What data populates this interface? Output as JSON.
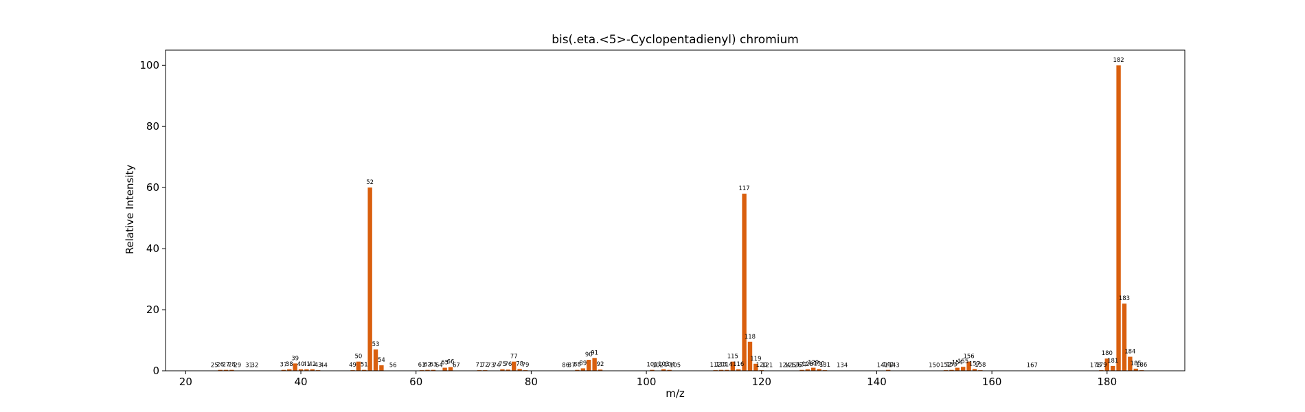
{
  "colors": {
    "bar": "#d95f0e",
    "axis": "#000000",
    "background": "#ffffff"
  },
  "chart_data": {
    "type": "bar",
    "title": "bis(.eta.<5>-Cyclopentadienyl) chromium",
    "xlabel": "m/z",
    "ylabel": "Relative Intensity",
    "xlim": [
      16.5,
      193.5
    ],
    "ylim": [
      0,
      105
    ],
    "xticks": [
      20,
      40,
      60,
      80,
      100,
      120,
      140,
      160,
      180
    ],
    "yticks": [
      0,
      20,
      40,
      60,
      80,
      100
    ],
    "grid": false,
    "peaks": [
      {
        "mz": 25,
        "intensity": 0.1,
        "label": "25"
      },
      {
        "mz": 26,
        "intensity": 0.3,
        "label": "26"
      },
      {
        "mz": 27,
        "intensity": 0.3,
        "label": "27"
      },
      {
        "mz": 28,
        "intensity": 0.3,
        "label": "28"
      },
      {
        "mz": 29,
        "intensity": 0.1,
        "label": "29"
      },
      {
        "mz": 31,
        "intensity": 0.1,
        "label": "31"
      },
      {
        "mz": 32,
        "intensity": 0.1,
        "label": "32"
      },
      {
        "mz": 37,
        "intensity": 0.3,
        "label": "37"
      },
      {
        "mz": 38,
        "intensity": 0.5,
        "label": "38"
      },
      {
        "mz": 39,
        "intensity": 2.4,
        "label": "39"
      },
      {
        "mz": 40,
        "intensity": 0.5,
        "label": "40"
      },
      {
        "mz": 41,
        "intensity": 0.5,
        "label": "41"
      },
      {
        "mz": 42,
        "intensity": 0.5,
        "label": "42"
      },
      {
        "mz": 43,
        "intensity": 0.2,
        "label": "43"
      },
      {
        "mz": 44,
        "intensity": 0.1,
        "label": "44"
      },
      {
        "mz": 49,
        "intensity": 0.2,
        "label": "49"
      },
      {
        "mz": 50,
        "intensity": 3.0,
        "label": "50"
      },
      {
        "mz": 51,
        "intensity": 0.3,
        "label": "51"
      },
      {
        "mz": 52,
        "intensity": 60.0,
        "label": "52"
      },
      {
        "mz": 53,
        "intensity": 7.0,
        "label": "53"
      },
      {
        "mz": 54,
        "intensity": 1.8,
        "label": "54"
      },
      {
        "mz": 56,
        "intensity": 0.1,
        "label": "56"
      },
      {
        "mz": 61,
        "intensity": 0.2,
        "label": "61"
      },
      {
        "mz": 62,
        "intensity": 0.3,
        "label": "62"
      },
      {
        "mz": 63,
        "intensity": 0.3,
        "label": "63"
      },
      {
        "mz": 64,
        "intensity": 0.1,
        "label": "64"
      },
      {
        "mz": 65,
        "intensity": 1.0,
        "label": "65"
      },
      {
        "mz": 66,
        "intensity": 1.2,
        "label": "66"
      },
      {
        "mz": 67,
        "intensity": 0.1,
        "label": "67"
      },
      {
        "mz": 71,
        "intensity": 0.2,
        "label": "71"
      },
      {
        "mz": 72,
        "intensity": 0.2,
        "label": "72"
      },
      {
        "mz": 73,
        "intensity": 0.1,
        "label": "73"
      },
      {
        "mz": 74,
        "intensity": 0.1,
        "label": "74"
      },
      {
        "mz": 75,
        "intensity": 0.5,
        "label": "75"
      },
      {
        "mz": 76,
        "intensity": 0.4,
        "label": "76"
      },
      {
        "mz": 77,
        "intensity": 3.0,
        "label": "77"
      },
      {
        "mz": 78,
        "intensity": 0.6,
        "label": "78"
      },
      {
        "mz": 79,
        "intensity": 0.2,
        "label": "79"
      },
      {
        "mz": 86,
        "intensity": 0.1,
        "label": "86"
      },
      {
        "mz": 87,
        "intensity": 0.1,
        "label": "87"
      },
      {
        "mz": 88,
        "intensity": 0.3,
        "label": "88"
      },
      {
        "mz": 89,
        "intensity": 0.8,
        "label": "89"
      },
      {
        "mz": 90,
        "intensity": 3.6,
        "label": "90"
      },
      {
        "mz": 91,
        "intensity": 4.2,
        "label": "91"
      },
      {
        "mz": 92,
        "intensity": 0.4,
        "label": "92"
      },
      {
        "mz": 101,
        "intensity": 0.3,
        "label": "101"
      },
      {
        "mz": 102,
        "intensity": 0.1,
        "label": "102"
      },
      {
        "mz": 103,
        "intensity": 0.5,
        "label": "103"
      },
      {
        "mz": 104,
        "intensity": 0.3,
        "label": "104"
      },
      {
        "mz": 105,
        "intensity": 0.1,
        "label": "105"
      },
      {
        "mz": 112,
        "intensity": 0.2,
        "label": "112"
      },
      {
        "mz": 113,
        "intensity": 0.3,
        "label": "113"
      },
      {
        "mz": 114,
        "intensity": 0.3,
        "label": "114"
      },
      {
        "mz": 115,
        "intensity": 3.0,
        "label": "115"
      },
      {
        "mz": 116,
        "intensity": 0.5,
        "label": "116"
      },
      {
        "mz": 117,
        "intensity": 58.0,
        "label": "117"
      },
      {
        "mz": 118,
        "intensity": 9.5,
        "label": "118"
      },
      {
        "mz": 119,
        "intensity": 2.3,
        "label": "119"
      },
      {
        "mz": 120,
        "intensity": 0.2,
        "label": "120"
      },
      {
        "mz": 121,
        "intensity": 0.1,
        "label": "121"
      },
      {
        "mz": 124,
        "intensity": 0.1,
        "label": "124"
      },
      {
        "mz": 125,
        "intensity": 0.1,
        "label": "125"
      },
      {
        "mz": 126,
        "intensity": 0.1,
        "label": "126"
      },
      {
        "mz": 127,
        "intensity": 0.3,
        "label": "127"
      },
      {
        "mz": 128,
        "intensity": 0.5,
        "label": "128"
      },
      {
        "mz": 129,
        "intensity": 1.0,
        "label": "129"
      },
      {
        "mz": 130,
        "intensity": 0.6,
        "label": "130"
      },
      {
        "mz": 131,
        "intensity": 0.2,
        "label": "131"
      },
      {
        "mz": 134,
        "intensity": 0.1,
        "label": "134"
      },
      {
        "mz": 141,
        "intensity": 0.1,
        "label": "141"
      },
      {
        "mz": 142,
        "intensity": 0.3,
        "label": "142"
      },
      {
        "mz": 143,
        "intensity": 0.1,
        "label": "143"
      },
      {
        "mz": 150,
        "intensity": 0.1,
        "label": "150"
      },
      {
        "mz": 152,
        "intensity": 0.2,
        "label": "152"
      },
      {
        "mz": 153,
        "intensity": 0.3,
        "label": "153"
      },
      {
        "mz": 154,
        "intensity": 1.0,
        "label": "154"
      },
      {
        "mz": 155,
        "intensity": 1.3,
        "label": "155"
      },
      {
        "mz": 156,
        "intensity": 3.0,
        "label": "156"
      },
      {
        "mz": 157,
        "intensity": 0.6,
        "label": "157"
      },
      {
        "mz": 158,
        "intensity": 0.2,
        "label": "158"
      },
      {
        "mz": 167,
        "intensity": 0.1,
        "label": "167"
      },
      {
        "mz": 178,
        "intensity": 0.1,
        "label": "178"
      },
      {
        "mz": 179,
        "intensity": 0.2,
        "label": "179"
      },
      {
        "mz": 180,
        "intensity": 4.0,
        "label": "180"
      },
      {
        "mz": 181,
        "intensity": 1.6,
        "label": "181"
      },
      {
        "mz": 182,
        "intensity": 100.0,
        "label": "182"
      },
      {
        "mz": 183,
        "intensity": 22.0,
        "label": "183"
      },
      {
        "mz": 184,
        "intensity": 4.6,
        "label": "184"
      },
      {
        "mz": 185,
        "intensity": 0.7,
        "label": "185"
      },
      {
        "mz": 186,
        "intensity": 0.2,
        "label": "186"
      }
    ]
  }
}
